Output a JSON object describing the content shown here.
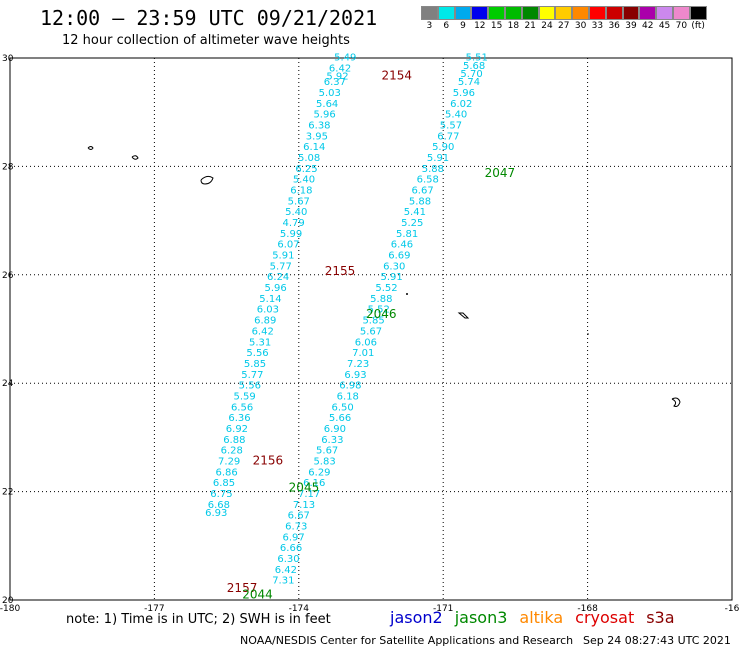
{
  "title": "12:00 – 23:59 UTC 09/21/2021",
  "subtitle": "12 hour collection of altimeter wave heights",
  "colorbar": {
    "labels": [
      "3",
      "6",
      "9",
      "12",
      "15",
      "18",
      "21",
      "24",
      "27",
      "30",
      "33",
      "36",
      "39",
      "42",
      "45",
      "70"
    ],
    "unit": "(ft)",
    "colors": [
      "#808080",
      "#00e8e8",
      "#00aaee",
      "#0000ee",
      "#00cc00",
      "#00bb00",
      "#008800",
      "#ffff00",
      "#ffcc00",
      "#ff8800",
      "#ff0000",
      "#cc0000",
      "#880000",
      "#aa00aa",
      "#cc88ee",
      "#ee88cc",
      "#000000"
    ]
  },
  "chart_data": {
    "type": "scatter",
    "xlim": [
      -180,
      -166
    ],
    "ylim": [
      20,
      30
    ],
    "x_ticks": [
      "-180",
      "-177",
      "-174",
      "-171",
      "-168",
      "-16"
    ],
    "y_ticks": [
      "30",
      "28",
      "26",
      "24",
      "22",
      "20"
    ],
    "grid": true,
    "pass_labels": [
      {
        "text": "2154",
        "lon": -172.5,
        "lat": 29.6,
        "color": "#880000"
      },
      {
        "text": "2047",
        "lon": -170.5,
        "lat": 27.8,
        "color": "#008800"
      },
      {
        "text": "2155",
        "lon": -173.6,
        "lat": 26.0,
        "color": "#880000"
      },
      {
        "text": "2046",
        "lon": -172.8,
        "lat": 25.2,
        "color": "#008800"
      },
      {
        "text": "2156",
        "lon": -175.0,
        "lat": 22.5,
        "color": "#880000"
      },
      {
        "text": "2045",
        "lon": -174.3,
        "lat": 22.0,
        "color": "#008800"
      },
      {
        "text": "2157",
        "lon": -175.5,
        "lat": 20.15,
        "color": "#880000"
      },
      {
        "text": "2044",
        "lon": -175.2,
        "lat": 20.03,
        "color": "#008800"
      }
    ],
    "track_a": [
      {
        "v": "5.49",
        "lon": -173.5,
        "lat": 29.95
      },
      {
        "v": "6.42",
        "lon": -173.6,
        "lat": 29.75
      },
      {
        "v": "5.92",
        "lon": -173.65,
        "lat": 29.6
      },
      {
        "v": "6.37",
        "lon": -173.7,
        "lat": 29.5
      },
      {
        "v": "5.03",
        "lon": -173.8,
        "lat": 29.3
      },
      {
        "v": "5.64",
        "lon": -173.85,
        "lat": 29.1
      },
      {
        "v": "5.96",
        "lon": -173.9,
        "lat": 28.9
      },
      {
        "v": "6.38",
        "lon": -174.0,
        "lat": 28.7
      },
      {
        "v": "3.95",
        "lon": -174.05,
        "lat": 28.5
      },
      {
        "v": "6.14",
        "lon": -174.1,
        "lat": 28.3
      },
      {
        "v": "5.08",
        "lon": -174.2,
        "lat": 28.1
      },
      {
        "v": "6.25",
        "lon": -174.25,
        "lat": 27.9
      },
      {
        "v": "5.40",
        "lon": -174.3,
        "lat": 27.7
      },
      {
        "v": "6.18",
        "lon": -174.35,
        "lat": 27.5
      },
      {
        "v": "5.67",
        "lon": -174.4,
        "lat": 27.3
      },
      {
        "v": "5.40",
        "lon": -174.45,
        "lat": 27.1
      },
      {
        "v": "4.79",
        "lon": -174.5,
        "lat": 26.9
      },
      {
        "v": "5.99",
        "lon": -174.55,
        "lat": 26.7
      },
      {
        "v": "6.07",
        "lon": -174.6,
        "lat": 26.5
      },
      {
        "v": "5.91",
        "lon": -174.7,
        "lat": 26.3
      },
      {
        "v": "5.77",
        "lon": -174.75,
        "lat": 26.1
      },
      {
        "v": "6.24",
        "lon": -174.8,
        "lat": 25.9
      },
      {
        "v": "5.96",
        "lon": -174.85,
        "lat": 25.7
      },
      {
        "v": "5.14",
        "lon": -174.95,
        "lat": 25.5
      },
      {
        "v": "6.03",
        "lon": -175.0,
        "lat": 25.3
      },
      {
        "v": "6.89",
        "lon": -175.05,
        "lat": 25.1
      },
      {
        "v": "6.42",
        "lon": -175.1,
        "lat": 24.9
      },
      {
        "v": "5.31",
        "lon": -175.15,
        "lat": 24.7
      },
      {
        "v": "5.56",
        "lon": -175.2,
        "lat": 24.5
      },
      {
        "v": "5.85",
        "lon": -175.25,
        "lat": 24.3
      },
      {
        "v": "5.77",
        "lon": -175.3,
        "lat": 24.1
      },
      {
        "v": "5.56",
        "lon": -175.35,
        "lat": 23.9
      },
      {
        "v": "5.59",
        "lon": -175.45,
        "lat": 23.7
      },
      {
        "v": "6.56",
        "lon": -175.5,
        "lat": 23.5
      },
      {
        "v": "6.36",
        "lon": -175.55,
        "lat": 23.3
      },
      {
        "v": "6.92",
        "lon": -175.6,
        "lat": 23.1
      },
      {
        "v": "6.88",
        "lon": -175.65,
        "lat": 22.9
      },
      {
        "v": "6.28",
        "lon": -175.7,
        "lat": 22.7
      },
      {
        "v": "7.29",
        "lon": -175.75,
        "lat": 22.5
      },
      {
        "v": "6.86",
        "lon": -175.8,
        "lat": 22.3
      },
      {
        "v": "6.85",
        "lon": -175.85,
        "lat": 22.1
      },
      {
        "v": "6.75",
        "lon": -175.9,
        "lat": 21.9
      },
      {
        "v": "6.68",
        "lon": -175.95,
        "lat": 21.7
      },
      {
        "v": "6.93",
        "lon": -176.0,
        "lat": 21.55
      }
    ],
    "track_b": [
      {
        "v": "5.51",
        "lon": -170.95,
        "lat": 29.95
      },
      {
        "v": "5.68",
        "lon": -171.0,
        "lat": 29.8
      },
      {
        "v": "5.70",
        "lon": -171.05,
        "lat": 29.65
      },
      {
        "v": "5.74",
        "lon": -171.1,
        "lat": 29.5
      },
      {
        "v": "5.96",
        "lon": -171.2,
        "lat": 29.3
      },
      {
        "v": "6.02",
        "lon": -171.25,
        "lat": 29.1
      },
      {
        "v": "5.40",
        "lon": -171.35,
        "lat": 28.9
      },
      {
        "v": "5.57",
        "lon": -171.45,
        "lat": 28.7
      },
      {
        "v": "6.77",
        "lon": -171.5,
        "lat": 28.5
      },
      {
        "v": "5.90",
        "lon": -171.6,
        "lat": 28.3
      },
      {
        "v": "5.91",
        "lon": -171.7,
        "lat": 28.1
      },
      {
        "v": "5.88",
        "lon": -171.8,
        "lat": 27.9
      },
      {
        "v": "6.58",
        "lon": -171.9,
        "lat": 27.7
      },
      {
        "v": "6.67",
        "lon": -172.0,
        "lat": 27.5
      },
      {
        "v": "5.88",
        "lon": -172.05,
        "lat": 27.3
      },
      {
        "v": "5.41",
        "lon": -172.15,
        "lat": 27.1
      },
      {
        "v": "5.25",
        "lon": -172.2,
        "lat": 26.9
      },
      {
        "v": "5.81",
        "lon": -172.3,
        "lat": 26.7
      },
      {
        "v": "6.46",
        "lon": -172.4,
        "lat": 26.5
      },
      {
        "v": "6.69",
        "lon": -172.45,
        "lat": 26.3
      },
      {
        "v": "6.30",
        "lon": -172.55,
        "lat": 26.1
      },
      {
        "v": "5.91",
        "lon": -172.6,
        "lat": 25.9
      },
      {
        "v": "5.52",
        "lon": -172.7,
        "lat": 25.7
      },
      {
        "v": "5.88",
        "lon": -172.8,
        "lat": 25.5
      },
      {
        "v": "5.52",
        "lon": -172.85,
        "lat": 25.3
      },
      {
        "v": "5.85",
        "lon": -172.95,
        "lat": 25.1
      },
      {
        "v": "5.67",
        "lon": -173.0,
        "lat": 24.9
      },
      {
        "v": "6.06",
        "lon": -173.1,
        "lat": 24.7
      },
      {
        "v": "7.01",
        "lon": -173.15,
        "lat": 24.5
      },
      {
        "v": "7.23",
        "lon": -173.25,
        "lat": 24.3
      },
      {
        "v": "6.93",
        "lon": -173.3,
        "lat": 24.1
      },
      {
        "v": "6.98",
        "lon": -173.4,
        "lat": 23.9
      },
      {
        "v": "6.18",
        "lon": -173.45,
        "lat": 23.7
      },
      {
        "v": "6.50",
        "lon": -173.55,
        "lat": 23.5
      },
      {
        "v": "5.66",
        "lon": -173.6,
        "lat": 23.3
      },
      {
        "v": "6.90",
        "lon": -173.7,
        "lat": 23.1
      },
      {
        "v": "6.33",
        "lon": -173.75,
        "lat": 22.9
      },
      {
        "v": "5.67",
        "lon": -173.85,
        "lat": 22.7
      },
      {
        "v": "5.83",
        "lon": -173.9,
        "lat": 22.5
      },
      {
        "v": "6.29",
        "lon": -174.0,
        "lat": 22.3
      },
      {
        "v": "6.16",
        "lon": -174.1,
        "lat": 22.1
      },
      {
        "v": "7.17",
        "lon": -174.2,
        "lat": 21.9
      },
      {
        "v": "7.13",
        "lon": -174.3,
        "lat": 21.7
      },
      {
        "v": "6.67",
        "lon": -174.4,
        "lat": 21.5
      },
      {
        "v": "6.73",
        "lon": -174.45,
        "lat": 21.3
      },
      {
        "v": "6.97",
        "lon": -174.5,
        "lat": 21.1
      },
      {
        "v": "6.66",
        "lon": -174.55,
        "lat": 20.9
      },
      {
        "v": "6.30",
        "lon": -174.6,
        "lat": 20.7
      },
      {
        "v": "6.42",
        "lon": -174.65,
        "lat": 20.5
      },
      {
        "v": "7.31",
        "lon": -174.7,
        "lat": 20.3
      }
    ]
  },
  "footnote": "note:  1) Time is in UTC;  2) SWH is in feet",
  "legend": [
    {
      "label": "jason2",
      "color": "#0000cc"
    },
    {
      "label": "jason3",
      "color": "#008800"
    },
    {
      "label": "altika",
      "color": "#ff8800"
    },
    {
      "label": "cryosat",
      "color": "#dd0000"
    },
    {
      "label": "s3a",
      "color": "#880000"
    }
  ],
  "credit": "NOAA/NESDIS Center for Satellite Applications and Research",
  "timestamp": "Sep 24 08:27:43 UTC 2021",
  "value_color": "#00c8e8"
}
